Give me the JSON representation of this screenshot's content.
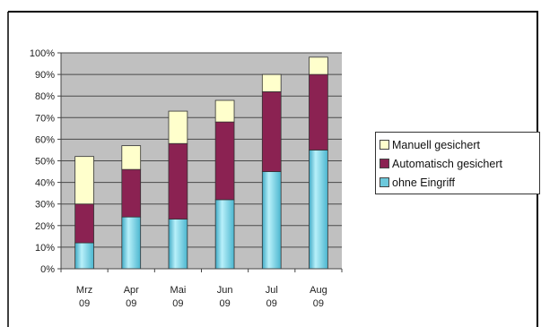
{
  "chart_data": {
    "type": "bar",
    "stacked": true,
    "categories": [
      [
        "Mrz",
        "09"
      ],
      [
        "Apr",
        "09"
      ],
      [
        "Mai",
        "09"
      ],
      [
        "Jun",
        "09"
      ],
      [
        "Jul",
        "09"
      ],
      [
        "Aug",
        "09"
      ]
    ],
    "series": [
      {
        "name": "ohne Eingriff",
        "color": "#6cc9dc",
        "values": [
          12,
          24,
          23,
          32,
          45,
          55
        ]
      },
      {
        "name": "Automatisch gesichert",
        "color": "#8b2252",
        "values": [
          18,
          22,
          35,
          36,
          37,
          35
        ]
      },
      {
        "name": "Manuell gesichert",
        "color": "#ffffcc",
        "values": [
          22,
          11,
          15,
          10,
          8,
          8
        ]
      }
    ],
    "legend_order": [
      "Manuell gesichert",
      "Automatisch gesichert",
      "ohne Eingriff"
    ],
    "yticks": [
      "0%",
      "10%",
      "20%",
      "30%",
      "40%",
      "50%",
      "60%",
      "70%",
      "80%",
      "90%",
      "100%"
    ],
    "ylim": [
      0,
      100
    ],
    "grid": true,
    "plot_background": "#c0c0c0",
    "legend_position": "right",
    "title": "",
    "xlabel": "",
    "ylabel": ""
  }
}
